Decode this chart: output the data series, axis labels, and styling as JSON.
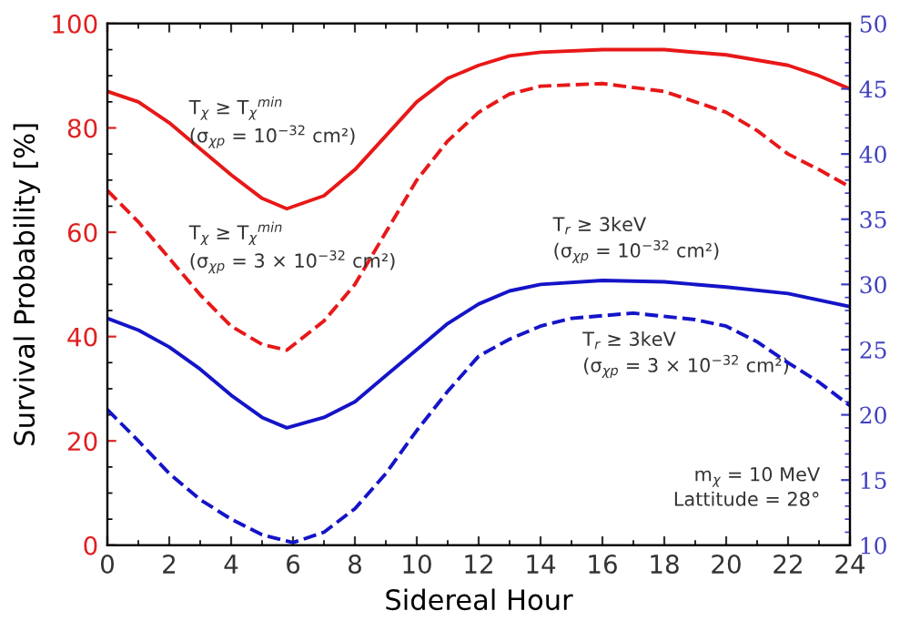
{
  "chart_data": {
    "type": "line",
    "xlabel": "Sidereal Hour",
    "ylabel": "Survival Probability [%]",
    "xlim": [
      0,
      24
    ],
    "xticks": [
      0,
      2,
      4,
      6,
      8,
      10,
      12,
      14,
      16,
      18,
      20,
      22,
      24
    ],
    "ylim": [
      0,
      100
    ],
    "yticks": [
      0,
      20,
      40,
      60,
      80,
      100
    ],
    "y2lim": [
      10,
      50
    ],
    "y2ticks": [
      10,
      15,
      20,
      25,
      30,
      35,
      40,
      45,
      50
    ],
    "grid": false,
    "legend": false,
    "marker": "none",
    "series": [
      {
        "color": "#e81818",
        "line_style": "solid",
        "x": [
          0,
          1,
          2,
          3,
          4,
          5,
          5.8,
          7,
          8,
          9,
          10,
          11,
          12,
          13,
          14,
          16,
          18,
          20,
          22,
          23,
          24
        ],
        "values": [
          87,
          85,
          81,
          76,
          71,
          66.5,
          64.5,
          67,
          72,
          78.5,
          85,
          89.5,
          92,
          93.8,
          94.5,
          95,
          95,
          94,
          92,
          90,
          87.5
        ]
      },
      {
        "color": "#e81818",
        "line_style": "dashed",
        "x": [
          0,
          1,
          2,
          3,
          4,
          5,
          5.8,
          7,
          8,
          9,
          10,
          11,
          12,
          13,
          14,
          16,
          18,
          20,
          21,
          22,
          23,
          24
        ],
        "values": [
          68,
          62,
          55,
          48,
          42,
          38.5,
          37.4,
          43,
          50,
          60,
          70,
          77.5,
          83,
          86.5,
          88,
          88.5,
          87,
          83,
          79.5,
          75,
          72,
          68.7
        ]
      },
      {
        "color": "#1414c8",
        "line_style": "solid",
        "axis": "y2",
        "x": [
          0,
          1,
          2,
          3,
          4,
          5,
          5.8,
          7,
          8,
          9,
          10,
          11,
          12,
          13,
          14,
          16,
          18,
          20,
          22,
          24
        ],
        "values": [
          27.4,
          26.5,
          25.2,
          23.5,
          21.5,
          19.8,
          19,
          19.8,
          21,
          23,
          25,
          27,
          28.5,
          29.5,
          30,
          30.3,
          30.2,
          29.8,
          29.3,
          28.3
        ]
      },
      {
        "color": "#1414c8",
        "line_style": "dashed",
        "axis": "y2",
        "x": [
          0,
          1,
          2,
          3,
          4,
          5,
          6,
          7,
          8,
          9,
          10,
          11,
          12,
          13,
          14,
          15,
          17,
          19,
          20,
          21,
          22,
          23,
          24
        ],
        "values": [
          20.4,
          18,
          15.5,
          13.5,
          12,
          10.8,
          10.2,
          11,
          12.8,
          15.5,
          18.8,
          21.8,
          24.5,
          25.8,
          26.8,
          27.4,
          27.8,
          27.3,
          26.8,
          25.6,
          24,
          22.5,
          20.7
        ]
      }
    ],
    "annotations": [
      "T$_{χ}$ ≥ T$_{χ}$$^{min}$\n(σ$_{χp}$ = 10$^{−32}$ cm²)",
      "T$_{χ}$ ≥ T$_{χ}$$^{min}$\n(σ$_{χp}$ = 3 × 10$^{−32}$ cm²)",
      "T$_{r}$ ≥ 3keV\n(σ$_{χp}$ = 10$^{−32}$ cm²)",
      "T$_{r}$ ≥ 3keV\n(σ$_{χp}$ = 3 × 10$^{−32}$ cm²)",
      "m$_{χ}$ = 10 MeV\nLattitude = 28°"
    ]
  }
}
